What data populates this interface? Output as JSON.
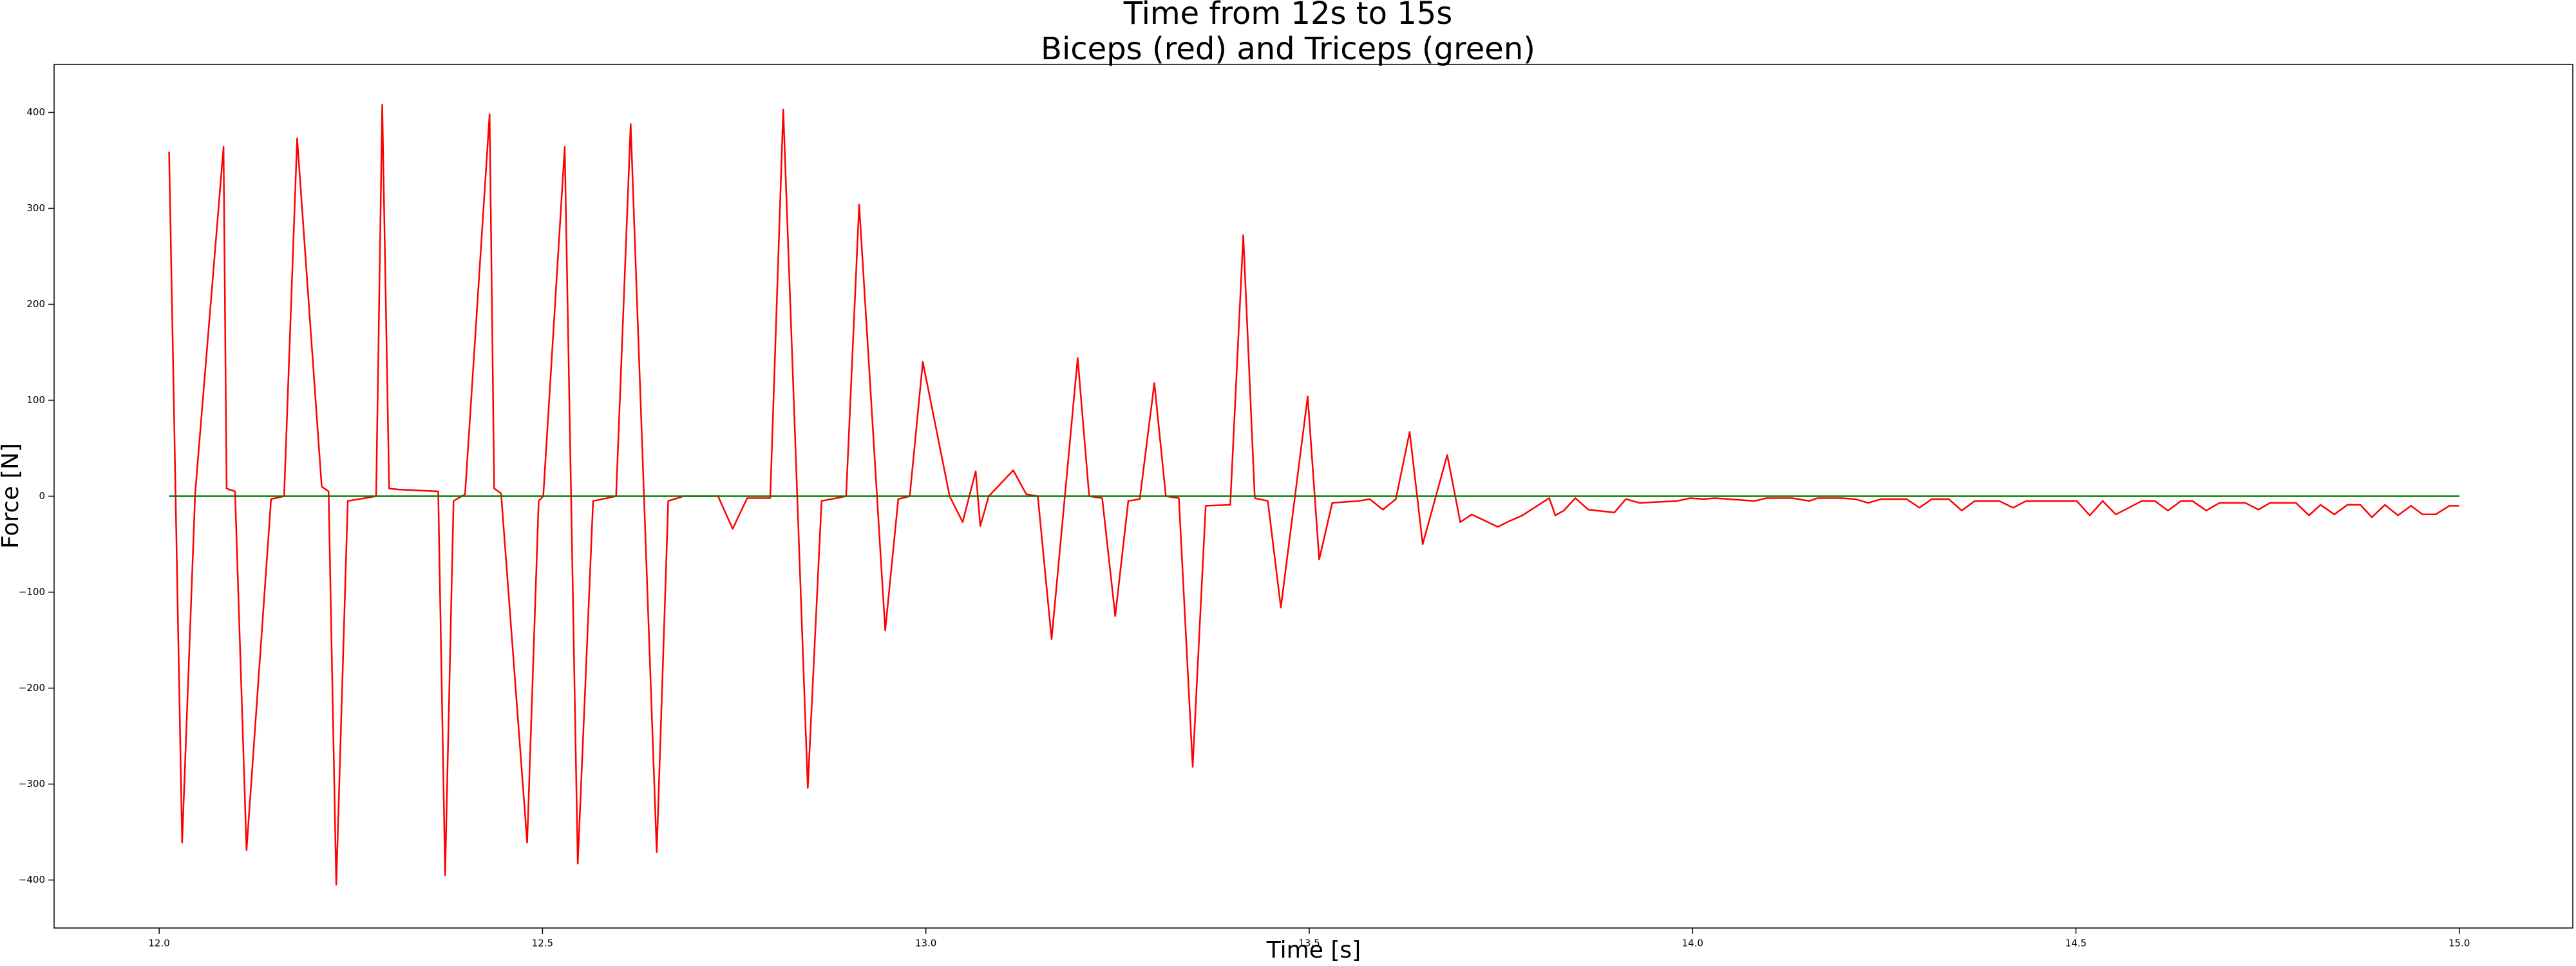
{
  "chart_data": {
    "type": "line",
    "title": "Time from 12s to 15s",
    "subtitle": "Biceps (red) and Triceps (green)",
    "x_label": "Time [s]",
    "y_label": "Force [N]",
    "xlim": [
      11.863,
      15.148
    ],
    "ylim": [
      -450,
      450
    ],
    "xticks": [
      {
        "value": 12,
        "label": "12.0"
      },
      {
        "value": 12.5,
        "label": "12.5"
      },
      {
        "value": 13,
        "label": "13.0"
      },
      {
        "value": 13.5,
        "label": "13.5"
      },
      {
        "value": 14,
        "label": "14.0"
      },
      {
        "value": 14.5,
        "label": "14.5"
      },
      {
        "value": 15,
        "label": "15.0"
      }
    ],
    "yticks": [
      {
        "value": -400,
        "label": "−400"
      },
      {
        "value": -300,
        "label": "−300"
      },
      {
        "value": -200,
        "label": "−200"
      },
      {
        "value": -100,
        "label": "−100"
      },
      0,
      100,
      200,
      300,
      400
    ],
    "grid": false,
    "series": [
      {
        "color": "#ff0000",
        "x": [
          12.013,
          12.03,
          12.047,
          12.084,
          12.088,
          12.099,
          12.114,
          12.146,
          12.163,
          12.18,
          12.212,
          12.221,
          12.231,
          12.246,
          12.283,
          12.291,
          12.3,
          12.313,
          12.364,
          12.373,
          12.384,
          12.399,
          12.431,
          12.437,
          12.446,
          12.48,
          12.495,
          12.501,
          12.529,
          12.546,
          12.566,
          12.596,
          12.615,
          12.649,
          12.664,
          12.684,
          12.729,
          12.748,
          12.767,
          12.797,
          12.814,
          12.846,
          12.864,
          12.896,
          12.913,
          12.947,
          12.964,
          12.979,
          12.996,
          13.031,
          13.048,
          13.065,
          13.071,
          13.082,
          13.114,
          13.131,
          13.146,
          13.164,
          13.198,
          13.213,
          13.23,
          13.247,
          13.264,
          13.279,
          13.298,
          13.313,
          13.33,
          13.348,
          13.365,
          13.397,
          13.414,
          13.429,
          13.446,
          13.463,
          13.498,
          13.513,
          13.53,
          13.564,
          13.579,
          13.596,
          13.613,
          13.631,
          13.648,
          13.68,
          13.697,
          13.712,
          13.746,
          13.761,
          13.778,
          13.813,
          13.821,
          13.832,
          13.847,
          13.864,
          13.898,
          13.913,
          13.931,
          13.98,
          13.997,
          14.014,
          14.029,
          14.081,
          14.096,
          14.13,
          14.152,
          14.163,
          14.195,
          14.212,
          14.229,
          14.246,
          14.279,
          14.296,
          14.312,
          14.334,
          14.351,
          14.368,
          14.4,
          14.418,
          14.435,
          14.501,
          14.518,
          14.535,
          14.552,
          14.586,
          14.603,
          14.62,
          14.637,
          14.652,
          14.67,
          14.687,
          14.721,
          14.738,
          14.753,
          14.787,
          14.804,
          14.819,
          14.837,
          14.854,
          14.871,
          14.886,
          14.903,
          14.92,
          14.937,
          14.952,
          14.969,
          14.987,
          15.0
        ],
        "values": [
          359,
          -361,
          3,
          364,
          8,
          5,
          -369,
          -3,
          0,
          373,
          10,
          5,
          -405,
          -5,
          0,
          408,
          8,
          7,
          5,
          -395,
          -5,
          2,
          398,
          8,
          3,
          -361,
          -5,
          0,
          364,
          -383,
          -5,
          0,
          388,
          -371,
          -5,
          0,
          0,
          -34,
          -2,
          -2,
          403,
          -304,
          -5,
          0,
          304,
          -140,
          -3,
          0,
          140,
          0,
          -27,
          26,
          -31,
          0,
          27,
          2,
          0,
          -149,
          144,
          0,
          -2,
          -125,
          -5,
          -3,
          118,
          0,
          -2,
          -282,
          -10,
          -9,
          272,
          -2,
          -5,
          -116,
          104,
          -66,
          -7,
          -5,
          -3,
          -14,
          -3,
          67,
          -50,
          43,
          -27,
          -19,
          -32,
          -26,
          -20,
          -2,
          -20,
          -15,
          -2,
          -14,
          -17,
          -3,
          -7,
          -5,
          -2,
          -3,
          -2,
          -5,
          -2,
          -2,
          -5,
          -2,
          -2,
          -3,
          -7,
          -3,
          -3,
          -12,
          -3,
          -3,
          -15,
          -5,
          -5,
          -12,
          -5,
          -5,
          -20,
          -5,
          -19,
          -5,
          -5,
          -15,
          -5,
          -5,
          -15,
          -7,
          -7,
          -14,
          -7,
          -7,
          -20,
          -9,
          -19,
          -9,
          -9,
          -22,
          -9,
          -20,
          -10,
          -19,
          -19,
          -10,
          -10
        ]
      },
      {
        "color": "#008000",
        "x": [
          12.013,
          15.0
        ],
        "values": [
          0,
          0
        ]
      }
    ]
  }
}
